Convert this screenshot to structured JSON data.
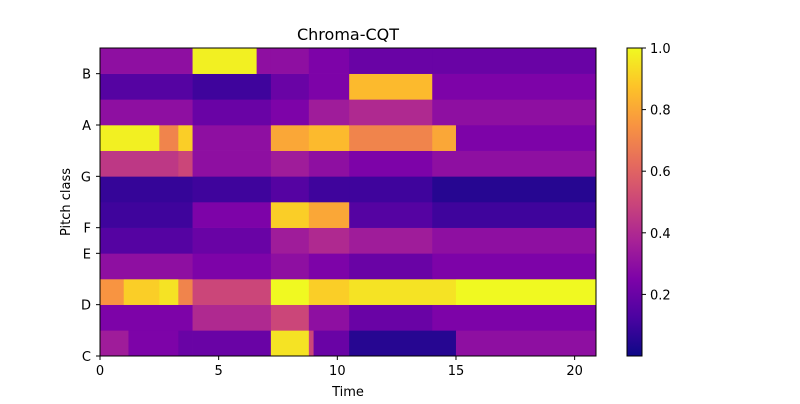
{
  "chart_data": {
    "type": "heatmap",
    "title": "Chroma-CQT",
    "xlabel": "Time",
    "ylabel": "Pitch class",
    "xlim": [
      0,
      20.9
    ],
    "x_ticks": [
      0,
      5,
      10,
      15,
      20
    ],
    "y_tick_labels": [
      "C",
      "D",
      "E",
      "F",
      "G",
      "A",
      "B"
    ],
    "y_tick_rows": [
      0,
      2,
      4,
      5,
      7,
      9,
      11
    ],
    "rows": [
      "C",
      "C#",
      "D",
      "D#",
      "E",
      "F",
      "F#",
      "G",
      "G#",
      "A",
      "A#",
      "B"
    ],
    "colorbar": {
      "colormap": "plasma",
      "range": [
        0,
        1.0
      ],
      "ticks": [
        0.2,
        0.4,
        0.6,
        0.8,
        1.0
      ],
      "tick_labels": [
        "0.2",
        "0.4",
        "0.6",
        "0.8",
        "1.0"
      ]
    },
    "segments": [
      [
        [
          0.0,
          0.35
        ],
        [
          1.2,
          0.25
        ],
        [
          3.3,
          0.2
        ],
        [
          3.9,
          0.2
        ],
        [
          7.2,
          0.95
        ],
        [
          8.8,
          0.5
        ],
        [
          9.0,
          0.2
        ],
        [
          10.5,
          0.05
        ],
        [
          14.0,
          0.05
        ],
        [
          15.0,
          0.3
        ],
        [
          20.9,
          0.3
        ]
      ],
      [
        [
          0.0,
          0.25
        ],
        [
          3.9,
          0.4
        ],
        [
          7.2,
          0.5
        ],
        [
          8.8,
          0.3
        ],
        [
          10.5,
          0.2
        ],
        [
          14.0,
          0.25
        ],
        [
          20.9,
          0.25
        ]
      ],
      [
        [
          0.0,
          0.75
        ],
        [
          1.0,
          0.9
        ],
        [
          2.5,
          0.95
        ],
        [
          3.3,
          0.7
        ],
        [
          3.9,
          0.5
        ],
        [
          7.2,
          1.0
        ],
        [
          8.8,
          0.9
        ],
        [
          10.5,
          0.95
        ],
        [
          14.0,
          0.95
        ],
        [
          15.0,
          1.0
        ],
        [
          20.9,
          1.0
        ]
      ],
      [
        [
          0.0,
          0.3
        ],
        [
          3.9,
          0.25
        ],
        [
          7.2,
          0.3
        ],
        [
          8.8,
          0.25
        ],
        [
          10.5,
          0.2
        ],
        [
          14.0,
          0.25
        ],
        [
          20.9,
          0.25
        ]
      ],
      [
        [
          0.0,
          0.15
        ],
        [
          3.9,
          0.2
        ],
        [
          7.2,
          0.35
        ],
        [
          8.8,
          0.4
        ],
        [
          10.5,
          0.35
        ],
        [
          14.0,
          0.3
        ],
        [
          20.9,
          0.3
        ]
      ],
      [
        [
          0.0,
          0.1
        ],
        [
          3.9,
          0.25
        ],
        [
          7.2,
          0.9
        ],
        [
          8.8,
          0.8
        ],
        [
          10.5,
          0.15
        ],
        [
          14.0,
          0.1
        ],
        [
          20.9,
          0.15
        ]
      ],
      [
        [
          0.0,
          0.08
        ],
        [
          3.9,
          0.1
        ],
        [
          7.2,
          0.15
        ],
        [
          8.8,
          0.1
        ],
        [
          10.5,
          0.1
        ],
        [
          14.0,
          0.05
        ],
        [
          20.9,
          0.1
        ]
      ],
      [
        [
          0.0,
          0.45
        ],
        [
          3.3,
          0.5
        ],
        [
          3.9,
          0.3
        ],
        [
          7.2,
          0.35
        ],
        [
          8.8,
          0.3
        ],
        [
          10.5,
          0.25
        ],
        [
          14.0,
          0.3
        ],
        [
          20.9,
          0.3
        ]
      ],
      [
        [
          0.0,
          0.98
        ],
        [
          2.5,
          0.7
        ],
        [
          3.3,
          0.9
        ],
        [
          3.9,
          0.3
        ],
        [
          7.2,
          0.8
        ],
        [
          8.8,
          0.85
        ],
        [
          10.5,
          0.7
        ],
        [
          14.0,
          0.8
        ],
        [
          15.0,
          0.25
        ],
        [
          20.9,
          0.3
        ]
      ],
      [
        [
          0.0,
          0.3
        ],
        [
          3.9,
          0.2
        ],
        [
          7.2,
          0.25
        ],
        [
          8.8,
          0.35
        ],
        [
          10.5,
          0.4
        ],
        [
          14.0,
          0.3
        ],
        [
          20.9,
          0.2
        ]
      ],
      [
        [
          0.0,
          0.15
        ],
        [
          3.9,
          0.1
        ],
        [
          7.2,
          0.2
        ],
        [
          8.8,
          0.25
        ],
        [
          10.5,
          0.85
        ],
        [
          14.0,
          0.25
        ],
        [
          20.9,
          0.2
        ]
      ],
      [
        [
          0.0,
          0.3
        ],
        [
          3.9,
          0.98
        ],
        [
          6.6,
          0.3
        ],
        [
          7.2,
          0.3
        ],
        [
          8.8,
          0.25
        ],
        [
          10.5,
          0.2
        ],
        [
          14.0,
          0.2
        ],
        [
          20.9,
          0.25
        ]
      ]
    ]
  }
}
